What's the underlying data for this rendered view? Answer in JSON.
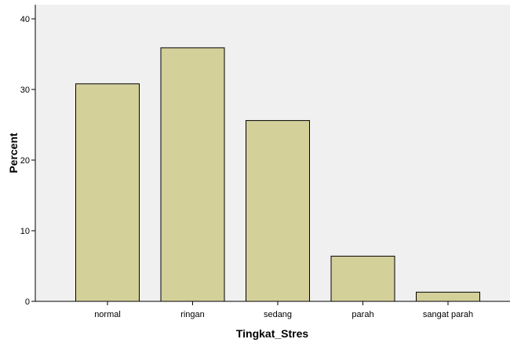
{
  "chart_data": {
    "type": "bar",
    "categories": [
      "normal",
      "ringan",
      "sedang",
      "parah",
      "sangat parah"
    ],
    "values": [
      30.8,
      35.9,
      25.6,
      6.4,
      1.3
    ],
    "xlabel": "Tingkat_Stres",
    "ylabel": "Percent",
    "ylim": [
      0,
      42
    ],
    "yticks": [
      0,
      10,
      20,
      30,
      40
    ],
    "grid": false,
    "colors": {
      "bar_fill": "#d4d09a",
      "bar_stroke": "#000000",
      "plot_background": "#f0f0f0",
      "page_background": "#ffffff"
    }
  }
}
